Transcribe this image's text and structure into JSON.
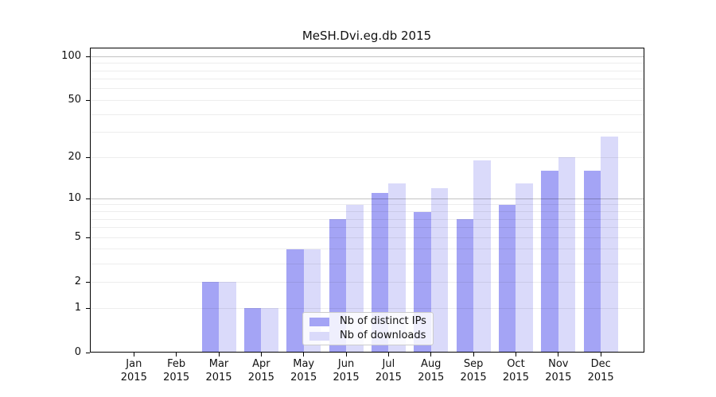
{
  "chart_data": {
    "type": "bar",
    "title": "MeSH.Dvi.eg.db 2015",
    "categories": [
      "Jan 2015",
      "Feb 2015",
      "Mar 2015",
      "Apr 2015",
      "May 2015",
      "Jun 2015",
      "Jul 2015",
      "Aug 2015",
      "Sep 2015",
      "Oct 2015",
      "Nov 2015",
      "Dec 2015"
    ],
    "series": [
      {
        "name": "Nb of distinct IPs",
        "color": "#a4a4f5",
        "values": [
          0,
          0,
          2,
          1,
          4,
          7,
          11,
          8,
          7,
          9,
          16,
          16
        ]
      },
      {
        "name": "Nb of downloads",
        "color": "#dadafa",
        "values": [
          0,
          0,
          2,
          1,
          4,
          9,
          13,
          12,
          19,
          13,
          20,
          28
        ]
      }
    ],
    "xlabel": "",
    "ylabel": "",
    "yscale": "log1p",
    "yticks": [
      0,
      1,
      2,
      5,
      10,
      20,
      50,
      100
    ],
    "ylim": [
      0,
      115
    ],
    "grid": "horizontal",
    "legend_position": "inside-bottom-center"
  }
}
